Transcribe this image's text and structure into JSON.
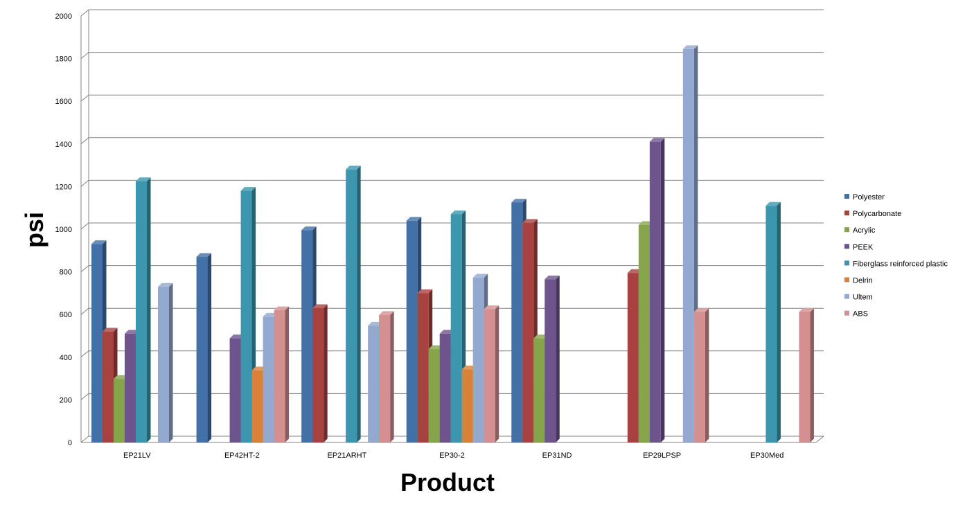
{
  "chart_data": {
    "type": "bar",
    "title": "",
    "xlabel": "Product",
    "ylabel": "psi",
    "ylim": [
      0,
      2000
    ],
    "yticks": [
      0,
      200,
      400,
      600,
      800,
      1000,
      1200,
      1400,
      1600,
      1800,
      2000
    ],
    "grid": true,
    "legend_position": "right",
    "categories": [
      "EP21LV",
      "EP42HT-2",
      "EP21ARHT",
      "EP30-2",
      "EP31ND",
      "EP29LPSP",
      "EP30Med"
    ],
    "series": [
      {
        "name": "Polyester",
        "color": "#4470a8",
        "values": [
          930,
          870,
          995,
          1040,
          1125,
          null,
          null
        ]
      },
      {
        "name": "Polycarbonate",
        "color": "#a84240",
        "values": [
          520,
          null,
          630,
          700,
          1030,
          795,
          null
        ]
      },
      {
        "name": "Acrylic",
        "color": "#86a44a",
        "values": [
          298,
          null,
          null,
          438,
          488,
          1020,
          null
        ]
      },
      {
        "name": "PEEK",
        "color": "#6e548d",
        "values": [
          510,
          488,
          null,
          510,
          765,
          1410,
          null
        ]
      },
      {
        "name": "Fiberglass reinforced plastic",
        "color": "#3c96ae",
        "values": [
          1225,
          1180,
          1280,
          1070,
          null,
          null,
          1110
        ]
      },
      {
        "name": "Delrin",
        "color": "#da8137",
        "values": [
          null,
          338,
          null,
          343,
          null,
          null,
          null
        ]
      },
      {
        "name": "Ultem",
        "color": "#94a9d0",
        "values": [
          730,
          590,
          548,
          773,
          null,
          1845,
          null
        ]
      },
      {
        "name": "ABS",
        "color": "#d49090",
        "values": [
          null,
          620,
          598,
          625,
          null,
          612,
          612
        ]
      }
    ]
  }
}
